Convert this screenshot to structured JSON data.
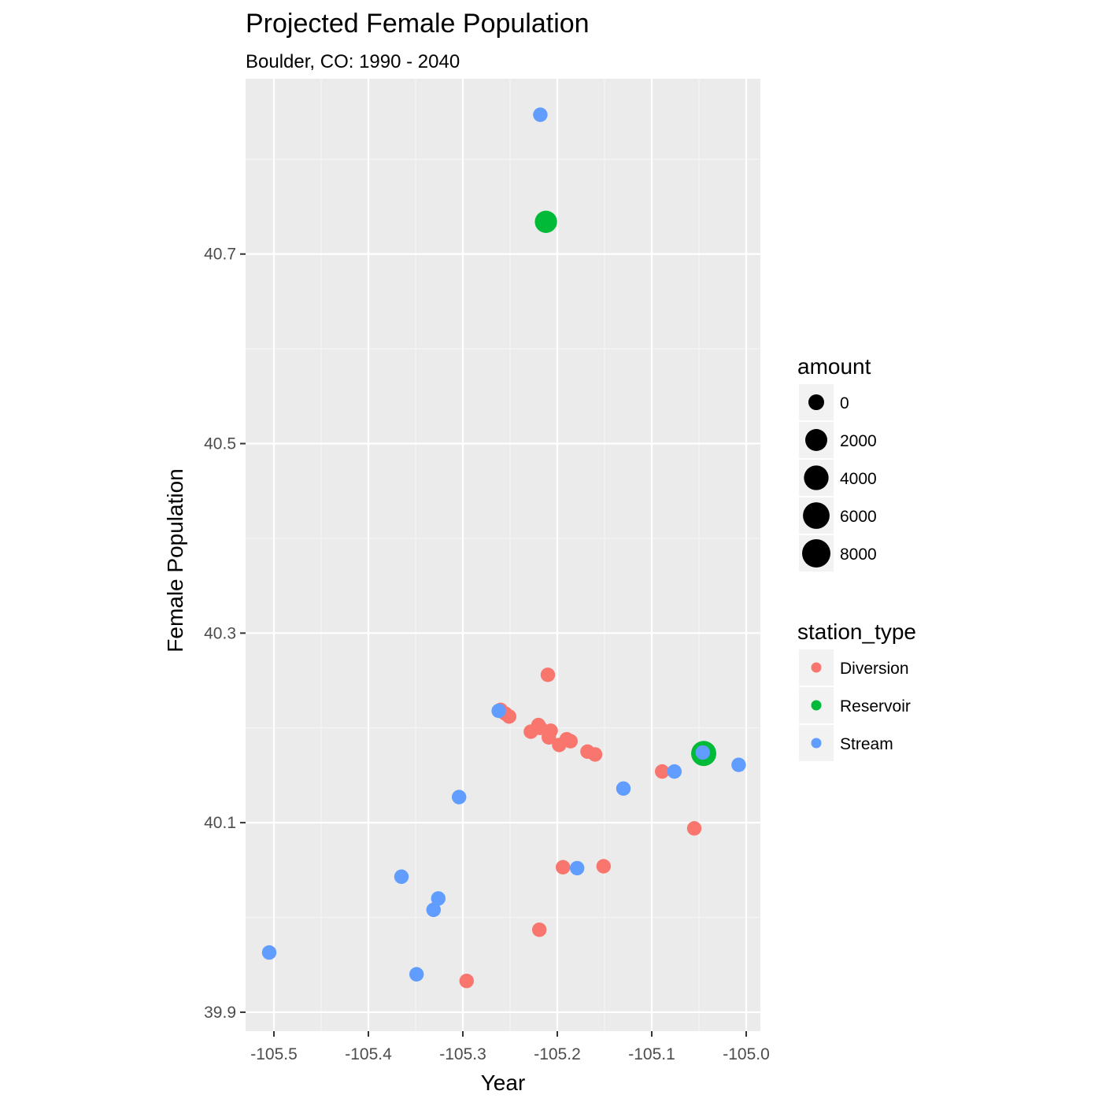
{
  "chart_data": {
    "type": "scatter",
    "title": "Projected Female Population",
    "subtitle": "Boulder, CO: 1990 - 2040",
    "xlabel": "Year",
    "ylabel": "Female Population",
    "xlim": [
      -105.53,
      -104.985
    ],
    "ylim": [
      39.88,
      40.885
    ],
    "x_ticks": [
      -105.5,
      -105.4,
      -105.3,
      -105.2,
      -105.1,
      -105.0
    ],
    "x_tick_labels": [
      "-105.5",
      "-105.4",
      "-105.3",
      "-105.2",
      "-105.1",
      "-105.0"
    ],
    "y_ticks": [
      39.9,
      40.1,
      40.3,
      40.5,
      40.7
    ],
    "y_tick_labels": [
      "39.9",
      "40.1",
      "40.3",
      "40.5",
      "40.7"
    ],
    "grid": true,
    "legend_position": "right",
    "size_legend": {
      "title": "amount",
      "entries": [
        {
          "label": "0",
          "value": 0
        },
        {
          "label": "2000",
          "value": 2000
        },
        {
          "label": "4000",
          "value": 4000
        },
        {
          "label": "6000",
          "value": 6000
        },
        {
          "label": "8000",
          "value": 8000
        }
      ]
    },
    "color_legend": {
      "title": "station_type",
      "entries": [
        {
          "label": "Diversion",
          "color": "#F8766D"
        },
        {
          "label": "Reservoir",
          "color": "#00BA38"
        },
        {
          "label": "Stream",
          "color": "#619CFF"
        }
      ]
    },
    "series": [
      {
        "name": "Reservoir",
        "color": "#00BA38",
        "points": [
          {
            "x": -105.212,
            "y": 40.734,
            "amount": 5200
          },
          {
            "x": -105.045,
            "y": 40.173,
            "amount": 8800
          }
        ]
      },
      {
        "name": "Diversion",
        "color": "#F8766D",
        "points": [
          {
            "x": -105.21,
            "y": 40.256,
            "amount": 200
          },
          {
            "x": -105.26,
            "y": 40.219,
            "amount": 200
          },
          {
            "x": -105.255,
            "y": 40.215,
            "amount": 200
          },
          {
            "x": -105.251,
            "y": 40.212,
            "amount": 200
          },
          {
            "x": -105.228,
            "y": 40.196,
            "amount": 200
          },
          {
            "x": -105.22,
            "y": 40.203,
            "amount": 200
          },
          {
            "x": -105.218,
            "y": 40.2,
            "amount": 200
          },
          {
            "x": -105.207,
            "y": 40.197,
            "amount": 200
          },
          {
            "x": -105.209,
            "y": 40.19,
            "amount": 200
          },
          {
            "x": -105.198,
            "y": 40.182,
            "amount": 200
          },
          {
            "x": -105.19,
            "y": 40.188,
            "amount": 200
          },
          {
            "x": -105.186,
            "y": 40.186,
            "amount": 200
          },
          {
            "x": -105.168,
            "y": 40.175,
            "amount": 200
          },
          {
            "x": -105.16,
            "y": 40.172,
            "amount": 200
          },
          {
            "x": -105.089,
            "y": 40.154,
            "amount": 200
          },
          {
            "x": -105.055,
            "y": 40.094,
            "amount": 200
          },
          {
            "x": -105.194,
            "y": 40.053,
            "amount": 200
          },
          {
            "x": -105.151,
            "y": 40.054,
            "amount": 200
          },
          {
            "x": -105.219,
            "y": 39.987,
            "amount": 200
          },
          {
            "x": -105.296,
            "y": 39.933,
            "amount": 200
          }
        ]
      },
      {
        "name": "Stream",
        "color": "#619CFF",
        "points": [
          {
            "x": -105.218,
            "y": 40.847,
            "amount": 200
          },
          {
            "x": -105.262,
            "y": 40.218,
            "amount": 200
          },
          {
            "x": -105.046,
            "y": 40.174,
            "amount": 200
          },
          {
            "x": -105.008,
            "y": 40.161,
            "amount": 200
          },
          {
            "x": -105.076,
            "y": 40.154,
            "amount": 200
          },
          {
            "x": -105.13,
            "y": 40.136,
            "amount": 200
          },
          {
            "x": -105.304,
            "y": 40.127,
            "amount": 200
          },
          {
            "x": -105.179,
            "y": 40.052,
            "amount": 200
          },
          {
            "x": -105.365,
            "y": 40.043,
            "amount": 200
          },
          {
            "x": -105.326,
            "y": 40.02,
            "amount": 200
          },
          {
            "x": -105.331,
            "y": 40.008,
            "amount": 200
          },
          {
            "x": -105.505,
            "y": 39.963,
            "amount": 200
          },
          {
            "x": -105.349,
            "y": 39.94,
            "amount": 200
          }
        ]
      }
    ]
  }
}
